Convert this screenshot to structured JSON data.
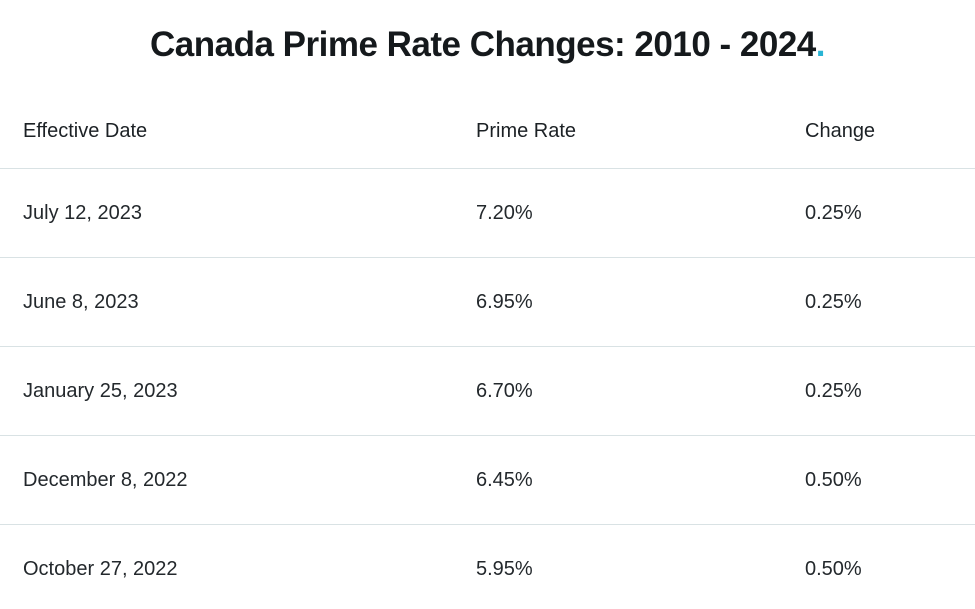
{
  "page": {
    "title_text": "Canada Prime Rate Changes: 2010 - 2024",
    "title_period": "."
  },
  "colors": {
    "accent": "#29b4d4",
    "divider": "#d9e2e4",
    "title_text": "#15191c",
    "body_text": "#23282c"
  },
  "table": {
    "headers": [
      "Effective Date",
      "Prime Rate",
      "Change"
    ],
    "rows": [
      {
        "date": "July 12, 2023",
        "rate": "7.20%",
        "change": "0.25%"
      },
      {
        "date": "June 8, 2023",
        "rate": "6.95%",
        "change": "0.25%"
      },
      {
        "date": "January 25, 2023",
        "rate": "6.70%",
        "change": "0.25%"
      },
      {
        "date": "December 8, 2022",
        "rate": "6.45%",
        "change": "0.50%"
      },
      {
        "date": "October 27, 2022",
        "rate": "5.95%",
        "change": "0.50%"
      }
    ]
  },
  "chart_data": {
    "type": "table",
    "title": "Canada Prime Rate Changes: 2010 - 2024.",
    "columns": [
      "Effective Date",
      "Prime Rate",
      "Change"
    ],
    "rows": [
      [
        "July 12, 2023",
        "7.20%",
        "0.25%"
      ],
      [
        "June 8, 2023",
        "6.95%",
        "0.25%"
      ],
      [
        "January 25, 2023",
        "6.70%",
        "0.25%"
      ],
      [
        "December 8, 2022",
        "6.45%",
        "0.50%"
      ],
      [
        "October 27, 2022",
        "5.95%",
        "0.50%"
      ]
    ]
  }
}
